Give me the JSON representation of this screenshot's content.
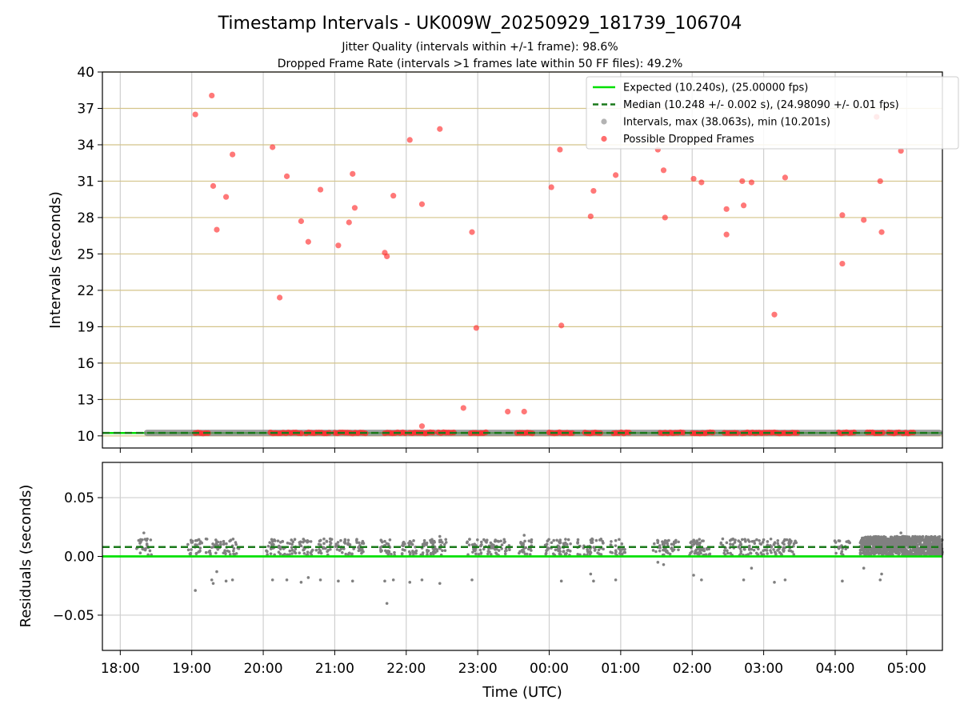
{
  "title": "Timestamp Intervals - UK009W_20250929_181739_106704",
  "subtitle_1": "Jitter Quality (intervals within +/-1 frame): 98.6%",
  "subtitle_2": "Dropped Frame Rate (intervals >1 frames late within 50 FF files): 49.2%",
  "colors": {
    "expected": "#00e000",
    "median": "#1a7a1a",
    "interval_dot": "#808080",
    "dropped": "#ff3030",
    "hgrid_top": "#d4c48a",
    "grid": "#cfcfcf"
  },
  "chart_data": [
    {
      "type": "scatter",
      "panel": "intervals",
      "ylabel": "Intervals (seconds)",
      "xlabel": "",
      "x_units": "hours since 18:00 UTC",
      "xlim": [
        -0.25,
        11.5
      ],
      "ylim": [
        9,
        40
      ],
      "yticks": [
        10,
        13,
        16,
        19,
        22,
        25,
        28,
        31,
        34,
        37,
        40
      ],
      "xtick_labels": [
        "18:00",
        "19:00",
        "20:00",
        "21:00",
        "22:00",
        "23:00",
        "00:00",
        "01:00",
        "02:00",
        "03:00",
        "04:00",
        "05:00"
      ],
      "legend_position": "top-right",
      "legend": [
        {
          "key": "expected",
          "label": "Expected (10.240s), (25.00000 fps)"
        },
        {
          "key": "median",
          "label": "Median (10.248 +/- 0.002 s), (24.98090 +/- 0.01 fps)"
        },
        {
          "key": "intervals",
          "label": "Intervals, max (38.063s), min (10.201s)"
        },
        {
          "key": "dropped",
          "label": "Possible Dropped Frames"
        }
      ],
      "expected_value": 10.24,
      "median_value": 10.248,
      "interval_band": {
        "x_start": 0.33,
        "x_end": 11.5,
        "value": 10.248
      },
      "dropped_clusters": [
        [
          1.05,
          1.25
        ],
        [
          2.1,
          2.55
        ],
        [
          2.6,
          2.95
        ],
        [
          3.0,
          3.45
        ],
        [
          3.7,
          4.0
        ],
        [
          4.05,
          4.4
        ],
        [
          4.45,
          4.7
        ],
        [
          4.9,
          5.15
        ],
        [
          5.55,
          5.8
        ],
        [
          6.0,
          6.35
        ],
        [
          6.5,
          6.75
        ],
        [
          6.9,
          7.15
        ],
        [
          7.55,
          7.9
        ],
        [
          8.0,
          8.3
        ],
        [
          8.45,
          8.65
        ],
        [
          8.7,
          8.9
        ],
        [
          8.9,
          9.15
        ],
        [
          9.15,
          9.5
        ],
        [
          10.05,
          10.3
        ],
        [
          10.45,
          10.7
        ],
        [
          10.75,
          10.9
        ],
        [
          10.95,
          11.1
        ]
      ],
      "dropped_points": [
        {
          "x": 1.05,
          "y": 36.5
        },
        {
          "x": 1.28,
          "y": 38.06
        },
        {
          "x": 1.3,
          "y": 30.6
        },
        {
          "x": 1.35,
          "y": 27.0
        },
        {
          "x": 1.48,
          "y": 29.7
        },
        {
          "x": 1.57,
          "y": 33.2
        },
        {
          "x": 2.13,
          "y": 33.8
        },
        {
          "x": 2.23,
          "y": 21.4
        },
        {
          "x": 2.33,
          "y": 31.4
        },
        {
          "x": 2.53,
          "y": 27.7
        },
        {
          "x": 2.63,
          "y": 26.0
        },
        {
          "x": 2.8,
          "y": 30.3
        },
        {
          "x": 3.05,
          "y": 25.7
        },
        {
          "x": 3.2,
          "y": 27.6
        },
        {
          "x": 3.25,
          "y": 31.6
        },
        {
          "x": 3.28,
          "y": 28.8
        },
        {
          "x": 3.7,
          "y": 25.1
        },
        {
          "x": 3.73,
          "y": 24.8
        },
        {
          "x": 3.82,
          "y": 29.8
        },
        {
          "x": 4.05,
          "y": 34.4
        },
        {
          "x": 4.22,
          "y": 29.1
        },
        {
          "x": 4.22,
          "y": 10.8
        },
        {
          "x": 4.47,
          "y": 35.3
        },
        {
          "x": 4.8,
          "y": 12.3
        },
        {
          "x": 4.92,
          "y": 26.8
        },
        {
          "x": 4.98,
          "y": 18.9
        },
        {
          "x": 5.42,
          "y": 12.0
        },
        {
          "x": 5.65,
          "y": 12.0
        },
        {
          "x": 6.03,
          "y": 30.5
        },
        {
          "x": 6.15,
          "y": 33.6
        },
        {
          "x": 6.17,
          "y": 19.1
        },
        {
          "x": 6.58,
          "y": 28.1
        },
        {
          "x": 6.62,
          "y": 30.2
        },
        {
          "x": 6.93,
          "y": 31.5
        },
        {
          "x": 7.52,
          "y": 33.6
        },
        {
          "x": 7.6,
          "y": 31.9
        },
        {
          "x": 7.62,
          "y": 28.0
        },
        {
          "x": 8.02,
          "y": 31.2
        },
        {
          "x": 8.13,
          "y": 30.9
        },
        {
          "x": 8.48,
          "y": 28.7
        },
        {
          "x": 8.48,
          "y": 26.6
        },
        {
          "x": 8.7,
          "y": 31.0
        },
        {
          "x": 8.72,
          "y": 29.0
        },
        {
          "x": 8.83,
          "y": 30.9
        },
        {
          "x": 9.15,
          "y": 20.0
        },
        {
          "x": 9.3,
          "y": 31.3
        },
        {
          "x": 10.1,
          "y": 28.2
        },
        {
          "x": 10.1,
          "y": 24.2
        },
        {
          "x": 10.4,
          "y": 27.8
        },
        {
          "x": 10.58,
          "y": 36.3
        },
        {
          "x": 10.63,
          "y": 31.0
        },
        {
          "x": 10.65,
          "y": 26.8
        },
        {
          "x": 10.92,
          "y": 33.5
        }
      ]
    },
    {
      "type": "scatter",
      "panel": "residuals",
      "ylabel": "Residuals (seconds)",
      "xlabel": "Time (UTC)",
      "x_units": "hours since 18:00 UTC",
      "xlim": [
        -0.25,
        11.5
      ],
      "ylim": [
        -0.08,
        0.08
      ],
      "yticks": [
        -0.05,
        0.0,
        0.05
      ],
      "ytick_labels": [
        "−0.05",
        "0.00",
        "0.05"
      ],
      "xtick_labels": [
        "18:00",
        "19:00",
        "20:00",
        "21:00",
        "22:00",
        "23:00",
        "00:00",
        "01:00",
        "02:00",
        "03:00",
        "04:00",
        "05:00"
      ],
      "expected_value": 0.0,
      "median_value": 0.008,
      "dense_region": {
        "x_start": 10.35,
        "x_end": 11.5,
        "low": 0.001,
        "high": 0.017
      },
      "cluster_centers": [
        0.33,
        1.05,
        1.3,
        1.55,
        2.15,
        2.35,
        2.6,
        2.85,
        3.1,
        3.3,
        3.75,
        4.05,
        4.3,
        4.45,
        4.95,
        5.15,
        5.35,
        5.65,
        6.05,
        6.2,
        6.5,
        6.65,
        6.95,
        7.55,
        7.7,
        8.05,
        8.15,
        8.5,
        8.75,
        8.95,
        9.2,
        9.35,
        10.1
      ],
      "outliers": [
        {
          "x": 0.33,
          "y": 0.02
        },
        {
          "x": 1.05,
          "y": -0.029
        },
        {
          "x": 1.28,
          "y": -0.02
        },
        {
          "x": 1.3,
          "y": -0.023
        },
        {
          "x": 1.35,
          "y": -0.013
        },
        {
          "x": 1.48,
          "y": -0.021
        },
        {
          "x": 1.57,
          "y": -0.02
        },
        {
          "x": 2.13,
          "y": -0.02
        },
        {
          "x": 2.33,
          "y": -0.02
        },
        {
          "x": 2.53,
          "y": -0.022
        },
        {
          "x": 2.63,
          "y": -0.018
        },
        {
          "x": 2.8,
          "y": -0.02
        },
        {
          "x": 3.05,
          "y": -0.021
        },
        {
          "x": 3.25,
          "y": -0.021
        },
        {
          "x": 3.7,
          "y": -0.021
        },
        {
          "x": 3.73,
          "y": -0.04
        },
        {
          "x": 3.82,
          "y": -0.02
        },
        {
          "x": 4.05,
          "y": -0.022
        },
        {
          "x": 4.22,
          "y": -0.02
        },
        {
          "x": 4.47,
          "y": -0.023
        },
        {
          "x": 4.92,
          "y": -0.02
        },
        {
          "x": 6.17,
          "y": -0.021
        },
        {
          "x": 6.58,
          "y": -0.015
        },
        {
          "x": 6.62,
          "y": -0.021
        },
        {
          "x": 6.93,
          "y": -0.02
        },
        {
          "x": 7.52,
          "y": -0.005
        },
        {
          "x": 7.6,
          "y": -0.007
        },
        {
          "x": 8.02,
          "y": -0.016
        },
        {
          "x": 8.13,
          "y": -0.02
        },
        {
          "x": 8.72,
          "y": -0.02
        },
        {
          "x": 8.83,
          "y": -0.01
        },
        {
          "x": 9.15,
          "y": -0.022
        },
        {
          "x": 9.3,
          "y": -0.02
        },
        {
          "x": 10.1,
          "y": -0.021
        },
        {
          "x": 10.4,
          "y": -0.01
        },
        {
          "x": 10.63,
          "y": -0.02
        },
        {
          "x": 10.65,
          "y": -0.015
        },
        {
          "x": 10.92,
          "y": 0.02
        },
        {
          "x": 4.47,
          "y": 0.017
        },
        {
          "x": 5.65,
          "y": 0.018
        }
      ]
    }
  ]
}
